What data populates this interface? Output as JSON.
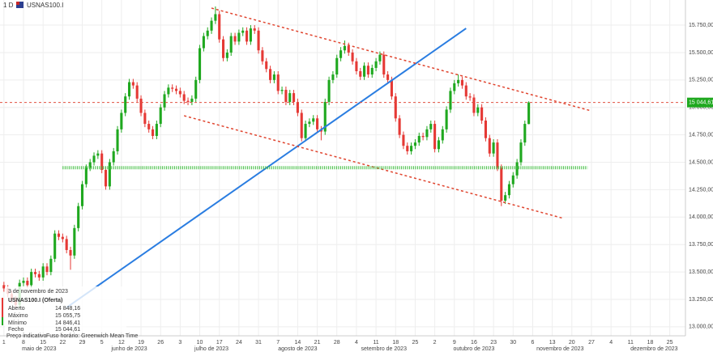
{
  "header": {
    "interval": "1 D",
    "symbol": "USNAS100.I"
  },
  "info": {
    "date": "3 de novembro de 2023",
    "instrument": "USNAS100.I (Oferta)",
    "rows": [
      [
        "Aberto",
        "14 848,16"
      ],
      [
        "Máximo",
        "15 055,75"
      ],
      [
        "Mínimo",
        "14 846,41"
      ],
      [
        "Fecho",
        "15 044,61"
      ]
    ],
    "footer": [
      "Preço indicativo",
      "Fuso horário: Greenwich Mean Time"
    ]
  },
  "chart_data": {
    "type": "candlestick",
    "up_color": "#1fa81f",
    "down_color": "#e53935",
    "grid": true,
    "xlim": [
      "2023-04-28",
      "2023-12-29"
    ],
    "ylim": [
      12918,
      15979
    ],
    "x": [
      "2023-05-01",
      "2023-05-02",
      "2023-05-03",
      "2023-05-04",
      "2023-05-05",
      "2023-05-08",
      "2023-05-09",
      "2023-05-10",
      "2023-05-11",
      "2023-05-12",
      "2023-05-15",
      "2023-05-16",
      "2023-05-17",
      "2023-05-18",
      "2023-05-19",
      "2023-05-22",
      "2023-05-23",
      "2023-05-24",
      "2023-05-25",
      "2023-05-26",
      "2023-05-29",
      "2023-05-30",
      "2023-05-31",
      "2023-06-01",
      "2023-06-02",
      "2023-06-05",
      "2023-06-06",
      "2023-06-07",
      "2023-06-08",
      "2023-06-09",
      "2023-06-12",
      "2023-06-13",
      "2023-06-14",
      "2023-06-15",
      "2023-06-16",
      "2023-06-19",
      "2023-06-20",
      "2023-06-21",
      "2023-06-22",
      "2023-06-23",
      "2023-06-26",
      "2023-06-27",
      "2023-06-28",
      "2023-06-29",
      "2023-06-30",
      "2023-07-03",
      "2023-07-04",
      "2023-07-05",
      "2023-07-06",
      "2023-07-07",
      "2023-07-10",
      "2023-07-11",
      "2023-07-12",
      "2023-07-13",
      "2023-07-14",
      "2023-07-17",
      "2023-07-18",
      "2023-07-19",
      "2023-07-20",
      "2023-07-21",
      "2023-07-24",
      "2023-07-25",
      "2023-07-26",
      "2023-07-27",
      "2023-07-28",
      "2023-07-31",
      "2023-08-01",
      "2023-08-02",
      "2023-08-03",
      "2023-08-04",
      "2023-08-07",
      "2023-08-08",
      "2023-08-09",
      "2023-08-10",
      "2023-08-11",
      "2023-08-14",
      "2023-08-15",
      "2023-08-16",
      "2023-08-17",
      "2023-08-18",
      "2023-08-21",
      "2023-08-22",
      "2023-08-23",
      "2023-08-24",
      "2023-08-25",
      "2023-08-28",
      "2023-08-29",
      "2023-08-30",
      "2023-08-31",
      "2023-09-01",
      "2023-09-04",
      "2023-09-05",
      "2023-09-06",
      "2023-09-07",
      "2023-09-08",
      "2023-09-11",
      "2023-09-12",
      "2023-09-13",
      "2023-09-14",
      "2023-09-15",
      "2023-09-18",
      "2023-09-19",
      "2023-09-20",
      "2023-09-21",
      "2023-09-22",
      "2023-09-25",
      "2023-09-26",
      "2023-09-27",
      "2023-09-28",
      "2023-09-29",
      "2023-10-02",
      "2023-10-03",
      "2023-10-04",
      "2023-10-05",
      "2023-10-06",
      "2023-10-09",
      "2023-10-10",
      "2023-10-11",
      "2023-10-12",
      "2023-10-13",
      "2023-10-16",
      "2023-10-17",
      "2023-10-18",
      "2023-10-19",
      "2023-10-20",
      "2023-10-23",
      "2023-10-24",
      "2023-10-25",
      "2023-10-26",
      "2023-10-27",
      "2023-10-30",
      "2023-10-31",
      "2023-11-01",
      "2023-11-02",
      "2023-11-03"
    ],
    "open": [
      13380,
      13350,
      13300,
      13250,
      13200,
      13400,
      13420,
      13380,
      13500,
      13480,
      13450,
      13550,
      13500,
      13620,
      13850,
      13820,
      13800,
      13700,
      13650,
      13900,
      14100,
      14300,
      14450,
      14500,
      14560,
      14580,
      14430,
      14280,
      14500,
      14600,
      14800,
      14950,
      15100,
      15230,
      15200,
      15080,
      14950,
      14850,
      14800,
      14740,
      14850,
      15000,
      15120,
      15180,
      15170,
      15150,
      15120,
      15060,
      15050,
      15080,
      15250,
      15540,
      15650,
      15700,
      15790,
      15850,
      15620,
      15450,
      15500,
      15650,
      15600,
      15680,
      15700,
      15600,
      15720,
      15700,
      15520,
      15420,
      15350,
      15250,
      15300,
      15150,
      15160,
      15050,
      15130,
      15050,
      14950,
      14720,
      14850,
      14870,
      14900,
      14800,
      14780,
      15050,
      15250,
      15300,
      15450,
      15520,
      15560,
      15500,
      15420,
      15330,
      15280,
      15380,
      15300,
      15360,
      15420,
      15480,
      15300,
      15250,
      15100,
      14900,
      14750,
      14650,
      14600,
      14650,
      14680,
      14740,
      14730,
      14800,
      14850,
      14620,
      14700,
      14800,
      14980,
      15150,
      15220,
      15250,
      15200,
      15100,
      15090,
      14950,
      15000,
      14880,
      14720,
      14580,
      14680,
      14450,
      14150,
      14200,
      14300,
      14380,
      14500,
      14680,
      14848.16
    ],
    "high": [
      13410,
      13380,
      13330,
      13280,
      13430,
      13450,
      13450,
      13530,
      13530,
      13510,
      13580,
      13580,
      13650,
      13880,
      13880,
      13850,
      13830,
      13730,
      13930,
      14130,
      14330,
      14480,
      14530,
      14590,
      14610,
      14610,
      14460,
      14530,
      14630,
      14830,
      14980,
      15130,
      15260,
      15260,
      15230,
      15110,
      14980,
      14880,
      14830,
      14880,
      15030,
      15150,
      15210,
      15210,
      15200,
      15180,
      15150,
      15090,
      15110,
      15280,
      15570,
      15680,
      15730,
      15820,
      15920,
      15880,
      15650,
      15530,
      15680,
      15680,
      15710,
      15730,
      15730,
      15750,
      15750,
      15730,
      15550,
      15450,
      15380,
      15330,
      15330,
      15190,
      15190,
      15160,
      15160,
      15080,
      14980,
      14880,
      14900,
      14930,
      14930,
      14830,
      15080,
      15280,
      15330,
      15480,
      15550,
      15610,
      15590,
      15530,
      15450,
      15360,
      15410,
      15410,
      15390,
      15450,
      15510,
      15510,
      15330,
      15280,
      15130,
      14930,
      14780,
      14680,
      14680,
      14710,
      14770,
      14770,
      14830,
      14880,
      14880,
      14730,
      14830,
      15010,
      15180,
      15250,
      15300,
      15280,
      15230,
      15130,
      15120,
      15030,
      15030,
      14910,
      14750,
      14710,
      14710,
      14480,
      14230,
      14330,
      14410,
      14530,
      14710,
      14880,
      15055.75
    ],
    "low": [
      13320,
      13270,
      13220,
      13170,
      13170,
      13370,
      13350,
      13350,
      13450,
      13420,
      13420,
      13470,
      13470,
      13590,
      13790,
      13770,
      13670,
      13520,
      13620,
      13870,
      14070,
      14270,
      14420,
      14470,
      14530,
      14400,
      14250,
      14250,
      14470,
      14570,
      14770,
      14920,
      15070,
      15170,
      15050,
      14920,
      14820,
      14770,
      14710,
      14710,
      14820,
      14970,
      15090,
      15140,
      15120,
      15090,
      15030,
      15020,
      15020,
      15050,
      15220,
      15510,
      15620,
      15670,
      15760,
      15590,
      15420,
      15420,
      15470,
      15570,
      15570,
      15650,
      15570,
      15570,
      15670,
      15490,
      15390,
      15320,
      15220,
      15220,
      15120,
      15120,
      15020,
      15020,
      15020,
      14920,
      14690,
      14690,
      14820,
      14840,
      14770,
      14700,
      14750,
      15020,
      15220,
      15270,
      15420,
      15490,
      15470,
      15390,
      15300,
      15250,
      15250,
      15270,
      15270,
      15330,
      15390,
      15270,
      15220,
      15070,
      14870,
      14720,
      14620,
      14570,
      14570,
      14620,
      14650,
      14700,
      14700,
      14770,
      14590,
      14590,
      14670,
      14770,
      14950,
      15120,
      15190,
      15170,
      15070,
      15060,
      14920,
      14920,
      14850,
      14690,
      14550,
      14550,
      14420,
      14100,
      14120,
      14170,
      14270,
      14350,
      14470,
      14650,
      14846.41
    ],
    "close": [
      13350,
      13300,
      13250,
      13200,
      13400,
      13420,
      13380,
      13500,
      13480,
      13450,
      13550,
      13500,
      13620,
      13850,
      13820,
      13800,
      13700,
      13650,
      13900,
      14100,
      14300,
      14450,
      14500,
      14560,
      14580,
      14430,
      14280,
      14500,
      14600,
      14800,
      14950,
      15100,
      15230,
      15200,
      15080,
      14950,
      14850,
      14800,
      14740,
      14850,
      15000,
      15120,
      15180,
      15170,
      15150,
      15120,
      15060,
      15050,
      15080,
      15250,
      15540,
      15650,
      15700,
      15790,
      15850,
      15620,
      15450,
      15500,
      15650,
      15600,
      15680,
      15700,
      15600,
      15720,
      15700,
      15520,
      15420,
      15350,
      15250,
      15300,
      15150,
      15160,
      15050,
      15130,
      15050,
      14950,
      14720,
      14850,
      14870,
      14900,
      14800,
      14780,
      15050,
      15250,
      15300,
      15450,
      15520,
      15560,
      15500,
      15420,
      15330,
      15280,
      15380,
      15300,
      15360,
      15420,
      15480,
      15300,
      15250,
      15100,
      14900,
      14750,
      14650,
      14600,
      14650,
      14680,
      14740,
      14730,
      14800,
      14850,
      14620,
      14700,
      14800,
      14980,
      15150,
      15220,
      15250,
      15200,
      15100,
      15090,
      14950,
      15000,
      14880,
      14720,
      14580,
      14680,
      14450,
      14150,
      14200,
      14300,
      14380,
      14500,
      14680,
      14850,
      15044.61
    ],
    "yticks": [
      {
        "value": 13000,
        "label": "13.000,00"
      },
      {
        "value": 13250,
        "label": "13.250,00"
      },
      {
        "value": 13500,
        "label": "13.500,00"
      },
      {
        "value": 13750,
        "label": "13.750,00"
      },
      {
        "value": 14000,
        "label": "14.000,00"
      },
      {
        "value": 14250,
        "label": "14.250,00"
      },
      {
        "value": 14500,
        "label": "14.500,00"
      },
      {
        "value": 14750,
        "label": "14.750,00"
      },
      {
        "value": 15000,
        "label": "15.000,00"
      },
      {
        "value": 15250,
        "label": "15.250,00"
      },
      {
        "value": 15500,
        "label": "15.500,00"
      },
      {
        "value": 15750,
        "label": "15.750,00"
      }
    ],
    "xticks": [
      {
        "value": "2023-05-01",
        "label": "1"
      },
      {
        "value": "2023-05-08",
        "label": "8"
      },
      {
        "value": "2023-05-15",
        "label": "15"
      },
      {
        "value": "2023-05-22",
        "label": "22"
      },
      {
        "value": "2023-05-29",
        "label": "29"
      },
      {
        "value": "2023-06-05",
        "label": "5"
      },
      {
        "value": "2023-06-12",
        "label": "12"
      },
      {
        "value": "2023-06-19",
        "label": "19"
      },
      {
        "value": "2023-06-26",
        "label": "26"
      },
      {
        "value": "2023-07-03",
        "label": "3"
      },
      {
        "value": "2023-07-10",
        "label": "10"
      },
      {
        "value": "2023-07-17",
        "label": "17"
      },
      {
        "value": "2023-07-24",
        "label": "24"
      },
      {
        "value": "2023-07-31",
        "label": "31"
      },
      {
        "value": "2023-08-07",
        "label": "7"
      },
      {
        "value": "2023-08-14",
        "label": "14"
      },
      {
        "value": "2023-08-21",
        "label": "21"
      },
      {
        "value": "2023-08-28",
        "label": "28"
      },
      {
        "value": "2023-09-04",
        "label": "4"
      },
      {
        "value": "2023-09-11",
        "label": "11"
      },
      {
        "value": "2023-09-18",
        "label": "18"
      },
      {
        "value": "2023-09-25",
        "label": "25"
      },
      {
        "value": "2023-10-02",
        "label": "2"
      },
      {
        "value": "2023-10-09",
        "label": "9"
      },
      {
        "value": "2023-10-16",
        "label": "16"
      },
      {
        "value": "2023-10-23",
        "label": "23"
      },
      {
        "value": "2023-10-30",
        "label": "30"
      },
      {
        "value": "2023-11-06",
        "label": "6"
      },
      {
        "value": "2023-11-13",
        "label": "13"
      },
      {
        "value": "2023-11-20",
        "label": "20"
      },
      {
        "value": "2023-11-27",
        "label": "27"
      },
      {
        "value": "2023-12-04",
        "label": "4"
      },
      {
        "value": "2023-12-11",
        "label": "11"
      },
      {
        "value": "2023-12-18",
        "label": "18"
      },
      {
        "value": "2023-12-25",
        "label": "25"
      }
    ],
    "month_labels": [
      {
        "value": "2023-05-12",
        "label": "maio de 2023"
      },
      {
        "value": "2023-06-14",
        "label": "junho de 2023"
      },
      {
        "value": "2023-07-13",
        "label": "julho de 2023"
      },
      {
        "value": "2023-08-14",
        "label": "agosto de 2023"
      },
      {
        "value": "2023-09-13",
        "label": "setembro de 2023"
      },
      {
        "value": "2023-10-16",
        "label": "outubro de 2023"
      },
      {
        "value": "2023-11-15",
        "label": "novembro de 2023"
      },
      {
        "value": "2023-12-19",
        "label": "dezembro de 2023"
      }
    ],
    "last_price": {
      "value": 15044.61,
      "label": "15 044,61",
      "color": "#1fa81f",
      "line_color": "#e05040"
    },
    "drawings": [
      {
        "style": "solid",
        "color": "#2a7de1",
        "x": [
          "2023-05-23",
          "2023-10-12"
        ],
        "y": [
          13176,
          15720
        ]
      },
      {
        "style": "dashed",
        "color": "#e0442e",
        "x": [
          "2023-07-13",
          "2023-11-27"
        ],
        "y": [
          15905,
          14968
        ]
      },
      {
        "style": "dashed",
        "color": "#e0442e",
        "x": [
          "2023-07-04",
          "2023-11-16"
        ],
        "y": [
          14924,
          13987
        ]
      },
      {
        "style": "dotted",
        "color": "#3cbc3c",
        "x": [
          "2023-05-22",
          "2023-11-24"
        ],
        "y": [
          14450,
          14450
        ]
      }
    ]
  }
}
